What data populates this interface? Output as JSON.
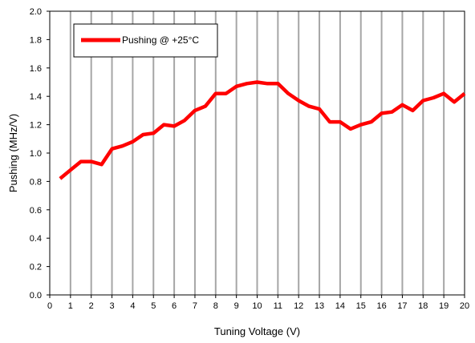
{
  "chart_data": {
    "type": "line",
    "title": "",
    "xlabel": "Tuning Voltage (V)",
    "ylabel": "Pushing (MHz/V)",
    "xlim": [
      0,
      20
    ],
    "ylim": [
      0.0,
      2.0
    ],
    "x_ticks": [
      "0",
      "1",
      "2",
      "3",
      "4",
      "5",
      "6",
      "7",
      "8",
      "9",
      "10",
      "11",
      "12",
      "13",
      "14",
      "15",
      "16",
      "17",
      "18",
      "19",
      "20"
    ],
    "y_ticks": [
      "0.0",
      "0.2",
      "0.4",
      "0.6",
      "0.8",
      "1.0",
      "1.2",
      "1.4",
      "1.6",
      "1.8",
      "2.0"
    ],
    "grid": "vertical",
    "legend_position": "top-left",
    "series": [
      {
        "name": "Pushing @ +25°C",
        "color": "#ff0000",
        "x": [
          0.5,
          1.0,
          1.5,
          2.0,
          2.5,
          3.0,
          3.5,
          4.0,
          4.5,
          5.0,
          5.5,
          6.0,
          6.5,
          7.0,
          7.5,
          8.0,
          8.5,
          9.0,
          9.5,
          10.0,
          10.5,
          11.0,
          11.5,
          12.0,
          12.5,
          13.0,
          13.5,
          14.0,
          14.5,
          15.0,
          15.5,
          16.0,
          16.5,
          17.0,
          17.5,
          18.0,
          18.5,
          19.0,
          19.5,
          20.0
        ],
        "y": [
          0.82,
          0.88,
          0.94,
          0.94,
          0.92,
          1.03,
          1.05,
          1.08,
          1.13,
          1.14,
          1.2,
          1.19,
          1.23,
          1.3,
          1.33,
          1.42,
          1.42,
          1.47,
          1.49,
          1.5,
          1.49,
          1.49,
          1.42,
          1.37,
          1.33,
          1.31,
          1.22,
          1.22,
          1.17,
          1.2,
          1.22,
          1.28,
          1.29,
          1.34,
          1.3,
          1.37,
          1.39,
          1.42,
          1.36,
          1.42
        ]
      }
    ]
  }
}
